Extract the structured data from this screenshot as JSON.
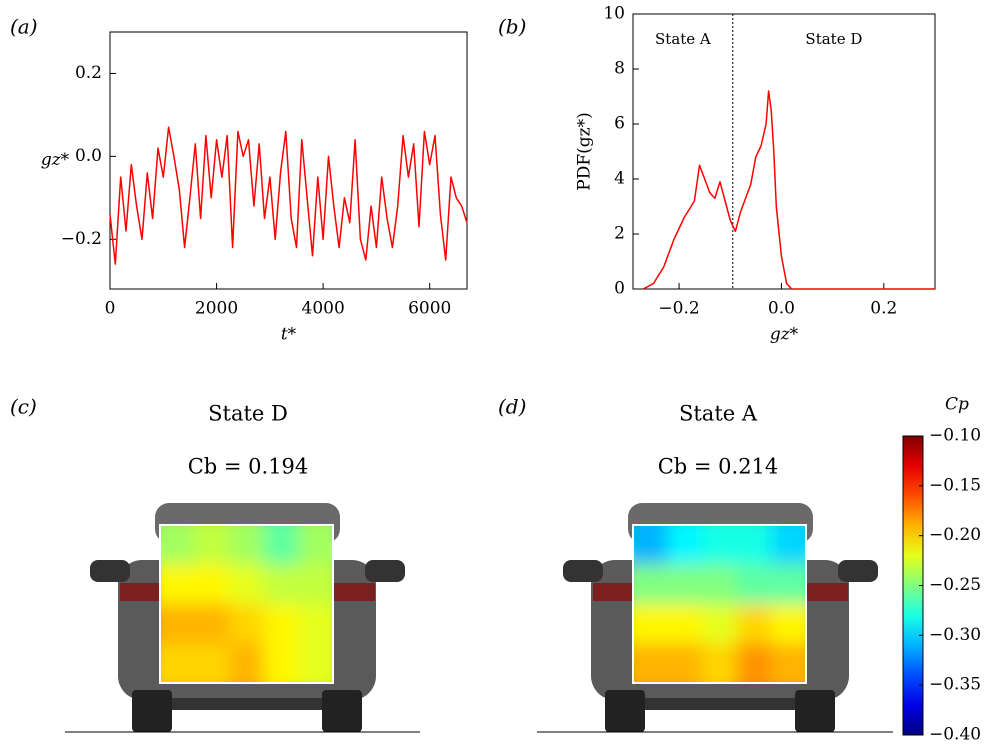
{
  "chart_data": [
    {
      "type": "line",
      "panel_label": "(a)",
      "xlabel": "t*",
      "ylabel": "gz*",
      "color": "#ff0000",
      "x": [
        0,
        100,
        200,
        300,
        400,
        500,
        600,
        700,
        800,
        900,
        1000,
        1100,
        1200,
        1300,
        1400,
        1500,
        1600,
        1700,
        1800,
        1900,
        2000,
        2100,
        2200,
        2300,
        2400,
        2500,
        2600,
        2700,
        2800,
        2900,
        3000,
        3100,
        3200,
        3300,
        3400,
        3500,
        3600,
        3700,
        3800,
        3900,
        4000,
        4100,
        4200,
        4300,
        4400,
        4500,
        4600,
        4700,
        4800,
        4900,
        5000,
        5100,
        5200,
        5300,
        5400,
        5500,
        5600,
        5700,
        5800,
        5900,
        6000,
        6100,
        6200,
        6300,
        6400,
        6500,
        6600,
        6700
      ],
      "values": [
        -0.14,
        -0.26,
        -0.05,
        -0.18,
        -0.02,
        -0.12,
        -0.2,
        -0.04,
        -0.15,
        0.02,
        -0.05,
        0.07,
        0.0,
        -0.08,
        -0.22,
        -0.1,
        0.03,
        -0.15,
        0.05,
        -0.1,
        0.04,
        -0.05,
        0.05,
        -0.22,
        0.06,
        0.0,
        0.04,
        -0.12,
        0.03,
        -0.15,
        -0.05,
        -0.2,
        -0.04,
        0.06,
        -0.15,
        -0.22,
        0.04,
        -0.1,
        -0.24,
        -0.05,
        -0.2,
        0.0,
        -0.12,
        -0.22,
        -0.1,
        -0.16,
        0.04,
        -0.2,
        -0.25,
        -0.12,
        -0.22,
        -0.05,
        -0.15,
        -0.22,
        -0.12,
        0.05,
        -0.05,
        0.03,
        -0.17,
        0.06,
        -0.02,
        0.05,
        -0.14,
        -0.25,
        -0.05,
        -0.1,
        -0.12,
        -0.16
      ],
      "xlim": [
        0,
        6700
      ],
      "xticks": [
        0,
        2000,
        4000,
        6000
      ],
      "ylim": [
        -0.32,
        0.3
      ],
      "yticks": [
        {
          "value": -0.2,
          "label": "−0.2"
        },
        {
          "value": 0,
          "label": "0.0"
        },
        0.2
      ]
    },
    {
      "type": "line",
      "panel_label": "(b)",
      "xlabel": "gz*",
      "ylabel": "PDF(gz*)",
      "color": "#ff0000",
      "x": [
        -0.27,
        -0.25,
        -0.23,
        -0.21,
        -0.19,
        -0.17,
        -0.16,
        -0.15,
        -0.14,
        -0.13,
        -0.12,
        -0.11,
        -0.1,
        -0.09,
        -0.08,
        -0.07,
        -0.06,
        -0.05,
        -0.04,
        -0.03,
        -0.025,
        -0.02,
        -0.015,
        -0.01,
        0.0,
        0.01,
        0.02,
        0.3
      ],
      "values": [
        0,
        0.2,
        0.8,
        1.8,
        2.6,
        3.2,
        4.5,
        4.0,
        3.5,
        3.3,
        3.9,
        3.2,
        2.5,
        2.1,
        2.8,
        3.3,
        3.8,
        4.8,
        5.2,
        6.0,
        7.2,
        6.5,
        5.0,
        3.0,
        1.2,
        0.2,
        0,
        0
      ],
      "xlim": [
        -0.29,
        0.3
      ],
      "xticks": [
        {
          "value": -0.2,
          "label": "−0.2"
        },
        {
          "value": 0,
          "label": "0.0"
        },
        0.2
      ],
      "ylim": [
        0,
        10
      ],
      "yticks": [
        0,
        2,
        4,
        6,
        8,
        10
      ],
      "divider": -0.095,
      "annotations": [
        "State A",
        "State D"
      ]
    },
    {
      "type": "heatmap",
      "panel_label": "(c)",
      "title": "State D",
      "subtitle": "Cb = 0.194",
      "z": [
        [
          -0.24,
          -0.23,
          -0.24,
          -0.26,
          -0.24
        ],
        [
          -0.21,
          -0.21,
          -0.22,
          -0.23,
          -0.23
        ],
        [
          -0.19,
          -0.19,
          -0.2,
          -0.21,
          -0.22
        ],
        [
          -0.2,
          -0.2,
          -0.19,
          -0.21,
          -0.22
        ]
      ]
    },
    {
      "type": "heatmap",
      "panel_label": "(d)",
      "title": "State A",
      "subtitle": "Cb = 0.214",
      "z": [
        [
          -0.31,
          -0.29,
          -0.28,
          -0.28,
          -0.3
        ],
        [
          -0.25,
          -0.25,
          -0.25,
          -0.26,
          -0.26
        ],
        [
          -0.21,
          -0.21,
          -0.22,
          -0.2,
          -0.21
        ],
        [
          -0.19,
          -0.19,
          -0.2,
          -0.18,
          -0.19
        ]
      ],
      "colorbar": {
        "label": "Cp",
        "clim": [
          -0.4,
          -0.1
        ],
        "ticks": [
          {
            "value": -0.1,
            "label": "−0.10"
          },
          {
            "value": -0.15,
            "label": "−0.15"
          },
          {
            "value": -0.2,
            "label": "−0.20"
          },
          {
            "value": -0.25,
            "label": "−0.25"
          },
          {
            "value": -0.3,
            "label": "−0.30"
          },
          {
            "value": -0.35,
            "label": "−0.35"
          },
          {
            "value": -0.4,
            "label": "−0.40"
          }
        ]
      }
    }
  ]
}
